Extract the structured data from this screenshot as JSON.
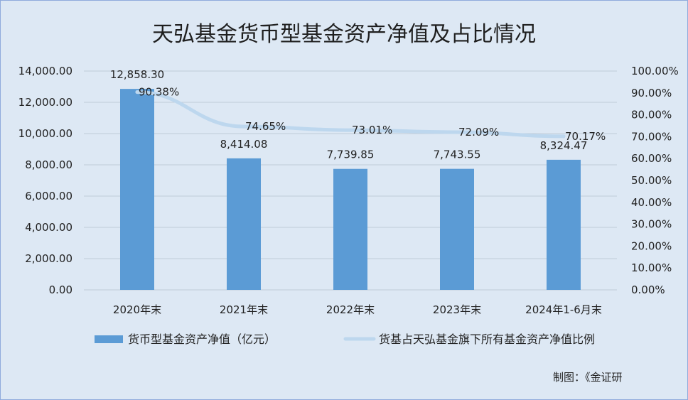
{
  "chart_data": {
    "type": "bar",
    "title": "天弘基金货币型基金资产净值及占比情况",
    "categories": [
      "2020年末",
      "2021年末",
      "2022年末",
      "2023年末",
      "2024年1-6月末"
    ],
    "series": [
      {
        "name": "货币型基金资产净值（亿元）",
        "type": "bar",
        "axis": "left",
        "values": [
          12858.3,
          8414.08,
          7739.85,
          7743.55,
          8324.47
        ],
        "labels": [
          "12,858.30",
          "8,414.08",
          "7,739.85",
          "7,743.55",
          "8,324.47"
        ],
        "color": "#5b9bd5"
      },
      {
        "name": "货基占天弘基金旗下所有基金资产净值比例",
        "type": "line",
        "axis": "right",
        "values": [
          90.38,
          74.65,
          73.01,
          72.09,
          70.17
        ],
        "labels": [
          "90.38%",
          "74.65%",
          "73.01%",
          "72.09%",
          "70.17%"
        ],
        "color": "#bdd7ee"
      }
    ],
    "y_left": {
      "min": 0,
      "max": 14000,
      "step": 2000,
      "ticks": [
        "0.00",
        "2,000.00",
        "4,000.00",
        "6,000.00",
        "8,000.00",
        "10,000.00",
        "12,000.00",
        "14,000.00"
      ]
    },
    "y_right": {
      "min": 0,
      "max": 100,
      "step": 10,
      "ticks": [
        "0.00%",
        "10.00%",
        "20.00%",
        "30.00%",
        "40.00%",
        "50.00%",
        "60.00%",
        "70.00%",
        "80.00%",
        "90.00%",
        "100.00%"
      ]
    },
    "grid": true,
    "legend_position": "bottom",
    "background": "#dde8f4",
    "grid_color": "#bfcbd9"
  },
  "credit": "制图：《金证研"
}
